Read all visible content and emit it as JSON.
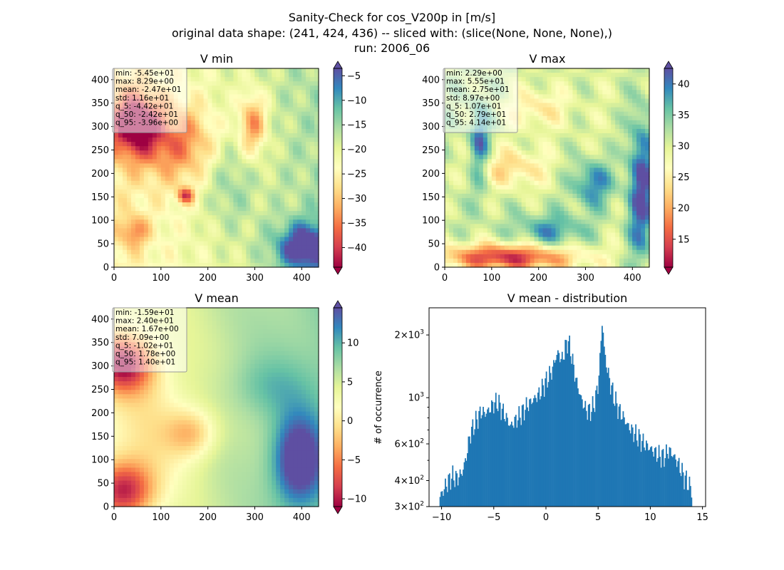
{
  "figure": {
    "title_lines": [
      "Sanity-Check for cos_V200p in [m/s]",
      "original data shape: (241, 424, 436) -- sliced with: (slice(None, None, None),)",
      "run: 2006_06"
    ]
  },
  "chart_data": [
    {
      "type": "heatmap",
      "title": "V min",
      "colormap": "Spectral",
      "xlim": [
        0,
        436
      ],
      "ylim": [
        0,
        424
      ],
      "xticks": [
        "0",
        "100",
        "200",
        "300",
        "400"
      ],
      "yticks": [
        "0",
        "50",
        "100",
        "150",
        "200",
        "250",
        "300",
        "350",
        "400"
      ],
      "colorbar": {
        "vmin": -44,
        "vmax": -3.5,
        "ticks": [
          "−40",
          "−35",
          "−30",
          "−25",
          "−20",
          "−15",
          "−10",
          "−5"
        ],
        "tick_values": [
          -40,
          -35,
          -30,
          -25,
          -20,
          -15,
          -10,
          -5
        ],
        "extend": "both"
      },
      "stats": [
        "min: -5.45e+01",
        "max: 8.29e+00",
        "mean: -2.47e+01",
        "std: 1.16e+01",
        "q_5: -4.42e+01",
        "q_50: -2.42e+01",
        "q_95: -3.96e+00"
      ]
    },
    {
      "type": "heatmap",
      "title": "V max",
      "colormap": "Spectral",
      "xlim": [
        0,
        436
      ],
      "ylim": [
        0,
        424
      ],
      "xticks": [
        "0",
        "100",
        "200",
        "300",
        "400"
      ],
      "yticks": [
        "0",
        "50",
        "100",
        "150",
        "200",
        "250",
        "300",
        "350",
        "400"
      ],
      "colorbar": {
        "vmin": 10.5,
        "vmax": 42.5,
        "ticks": [
          "15",
          "20",
          "25",
          "30",
          "35",
          "40"
        ],
        "tick_values": [
          15,
          20,
          25,
          30,
          35,
          40
        ],
        "extend": "both"
      },
      "stats": [
        "min: 2.29e+00",
        "max: 5.55e+01",
        "mean: 2.75e+01",
        "std: 8.97e+00",
        "q_5: 1.07e+01",
        "q_50: 2.79e+01",
        "q_95: 4.14e+01"
      ]
    },
    {
      "type": "heatmap",
      "title": "V mean",
      "colormap": "Spectral",
      "xlim": [
        0,
        436
      ],
      "ylim": [
        0,
        424
      ],
      "xticks": [
        "0",
        "100",
        "200",
        "300",
        "400"
      ],
      "yticks": [
        "0",
        "50",
        "100",
        "150",
        "200",
        "250",
        "300",
        "350",
        "400"
      ],
      "colorbar": {
        "vmin": -11,
        "vmax": 14.5,
        "ticks": [
          "−10",
          "−5",
          "0",
          "5",
          "10"
        ],
        "tick_values": [
          -10,
          -5,
          0,
          5,
          10
        ],
        "extend": "both"
      },
      "stats": [
        "min: -1.59e+01",
        "max: 2.40e+01",
        "mean: 1.67e+00",
        "std: 7.09e+00",
        "q_5: -1.02e+01",
        "q_50: 1.78e+00",
        "q_95: 1.40e+01"
      ]
    },
    {
      "type": "bar",
      "title": "V mean - distribution",
      "ylabel": "# of occurrence",
      "xlabel": "",
      "yscale": "log",
      "color": "#1f77b4",
      "xlim": [
        -11.2,
        15.3
      ],
      "ylim": [
        300,
        2700
      ],
      "xticks": [
        "−10",
        "−5",
        "0",
        "5",
        "10",
        "15"
      ],
      "xtick_values": [
        -10,
        -5,
        0,
        5,
        10,
        15
      ],
      "yticks_major": [
        {
          "value": 300,
          "base": "3",
          "exp": "2"
        },
        {
          "value": 400,
          "base": "4",
          "exp": "2"
        },
        {
          "value": 600,
          "base": "6",
          "exp": "2"
        },
        {
          "value": 1000,
          "base": "10",
          "exp": "3"
        },
        {
          "value": 2000,
          "base": "2",
          "exp": "3"
        }
      ],
      "bins": {
        "start": -10.2,
        "end": 14.0
      },
      "profile_points": [
        [
          -10.2,
          330
        ],
        [
          -9.6,
          380
        ],
        [
          -9.0,
          420
        ],
        [
          -8.5,
          410
        ],
        [
          -8.0,
          440
        ],
        [
          -7.6,
          530
        ],
        [
          -7.3,
          660
        ],
        [
          -7.0,
          720
        ],
        [
          -6.6,
          790
        ],
        [
          -6.2,
          860
        ],
        [
          -5.8,
          840
        ],
        [
          -5.4,
          880
        ],
        [
          -5.0,
          940
        ],
        [
          -4.6,
          950
        ],
        [
          -4.2,
          870
        ],
        [
          -3.8,
          800
        ],
        [
          -3.4,
          730
        ],
        [
          -3.0,
          770
        ],
        [
          -2.6,
          810
        ],
        [
          -2.2,
          860
        ],
        [
          -1.8,
          920
        ],
        [
          -1.4,
          960
        ],
        [
          -1.0,
          1000
        ],
        [
          -0.6,
          1050
        ],
        [
          -0.2,
          1150
        ],
        [
          0.2,
          1250
        ],
        [
          0.6,
          1350
        ],
        [
          0.9,
          1550
        ],
        [
          1.2,
          1650
        ],
        [
          1.5,
          1500
        ],
        [
          1.8,
          1700
        ],
        [
          2.1,
          1900
        ],
        [
          2.4,
          1650
        ],
        [
          2.7,
          1350
        ],
        [
          3.0,
          1150
        ],
        [
          3.4,
          980
        ],
        [
          3.8,
          880
        ],
        [
          4.2,
          860
        ],
        [
          4.6,
          920
        ],
        [
          5.0,
          1150
        ],
        [
          5.2,
          1600
        ],
        [
          5.4,
          2400
        ],
        [
          5.6,
          1650
        ],
        [
          5.9,
          1350
        ],
        [
          6.2,
          1150
        ],
        [
          6.6,
          980
        ],
        [
          7.0,
          870
        ],
        [
          7.4,
          810
        ],
        [
          7.8,
          740
        ],
        [
          8.3,
          690
        ],
        [
          8.8,
          650
        ],
        [
          9.3,
          610
        ],
        [
          9.8,
          580
        ],
        [
          10.3,
          555
        ],
        [
          10.8,
          530
        ],
        [
          11.3,
          520
        ],
        [
          11.8,
          560
        ],
        [
          12.3,
          520
        ],
        [
          12.8,
          470
        ],
        [
          13.2,
          420
        ],
        [
          13.6,
          390
        ],
        [
          14.0,
          360
        ]
      ]
    }
  ]
}
